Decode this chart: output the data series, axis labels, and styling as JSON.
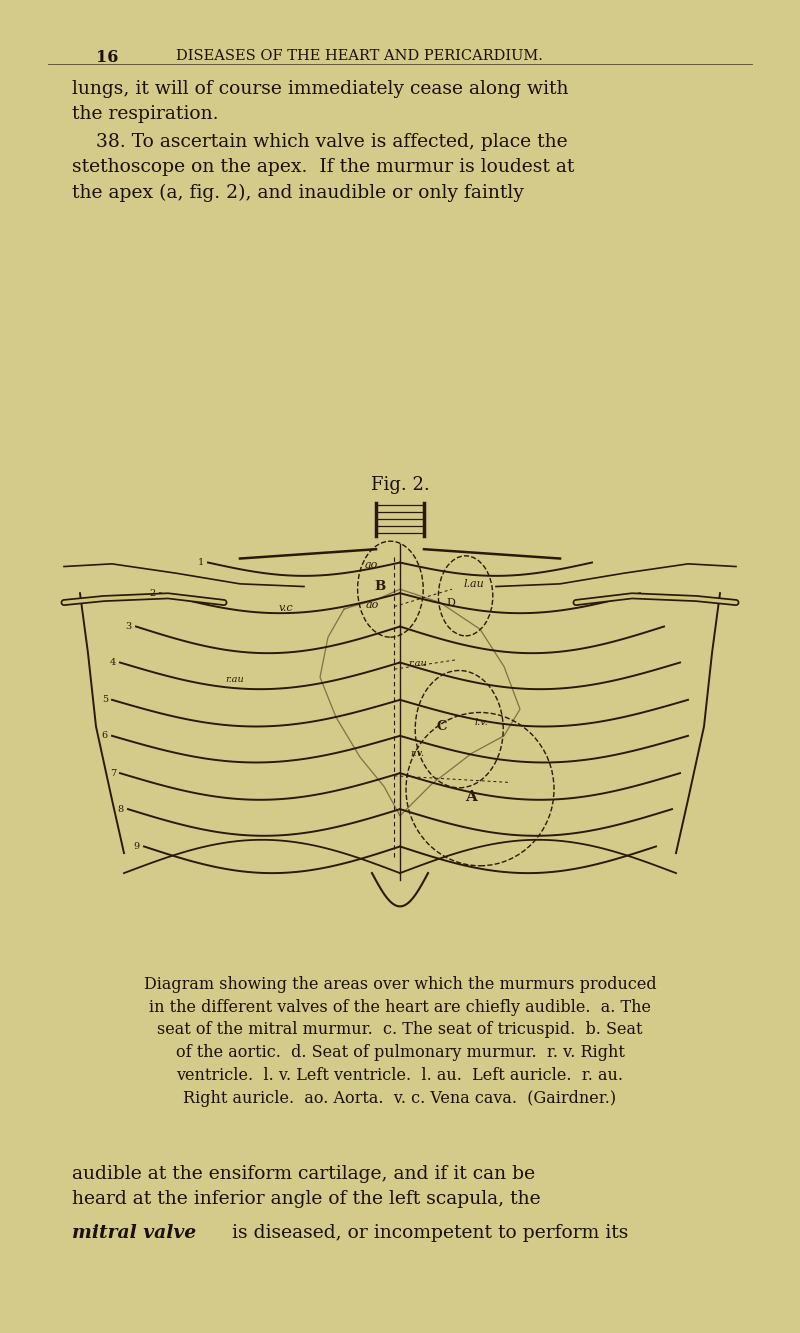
{
  "background_color": "#d4ca8a",
  "page_color": "#cfc880",
  "text_color": "#1a1008",
  "fig_width": 8.0,
  "fig_height": 13.33,
  "header_num": "16",
  "header_title": "DISEASES OF THE HEART AND PERICARDIUM.",
  "header_fontsize": 10.5,
  "body_text_1": "lungs, it will of course immediately cease along with\nthe respiration.",
  "body_text_2": "    38. To ascertain which valve is affected, place the\nstethoscope on the apex.  If the murmur is loudest at\nthe apex (a, fig. 2), and inaudible or only faintly",
  "fig_title": "Fig. 2.",
  "caption_text": "Diagram showing the areas over which the murmurs produced\nin the different valves of the heart are chiefly audible.  a. The\nseat of the mitral murmur.  c. The seat of tricuspid.  b. Seat\nof the aortic.  d. Seat of pulmonary murmur.  r. v. Right\nventricle.  l. v. Left ventricle.  l. au.  Left auricle.  r. au.\nRight auricle.  ao. Aorta.  v. c. Vena cava.  (Gairdner.)",
  "bottom_text_1": "audible at the ensiform cartilage, and if it can be\nheard at the inferior angle of the left scapula, the",
  "bottom_text_2_italic": "mitral valve",
  "bottom_text_3": " is diseased, or incompetent to perform its",
  "body_fontsize": 13.5,
  "caption_fontsize": 11.5,
  "fig_title_fontsize": 13,
  "line_color": "#2a1a05",
  "rib_data": [
    [
      0.578,
      0.26,
      0.5,
      0.01
    ],
    [
      0.555,
      0.2,
      0.5,
      0.015
    ],
    [
      0.53,
      0.17,
      0.5,
      0.02
    ],
    [
      0.503,
      0.15,
      0.5,
      0.02
    ],
    [
      0.475,
      0.14,
      0.5,
      0.02
    ],
    [
      0.448,
      0.14,
      0.5,
      0.02
    ],
    [
      0.42,
      0.15,
      0.5,
      0.02
    ],
    [
      0.393,
      0.16,
      0.5,
      0.02
    ],
    [
      0.365,
      0.18,
      0.5,
      0.02
    ]
  ]
}
